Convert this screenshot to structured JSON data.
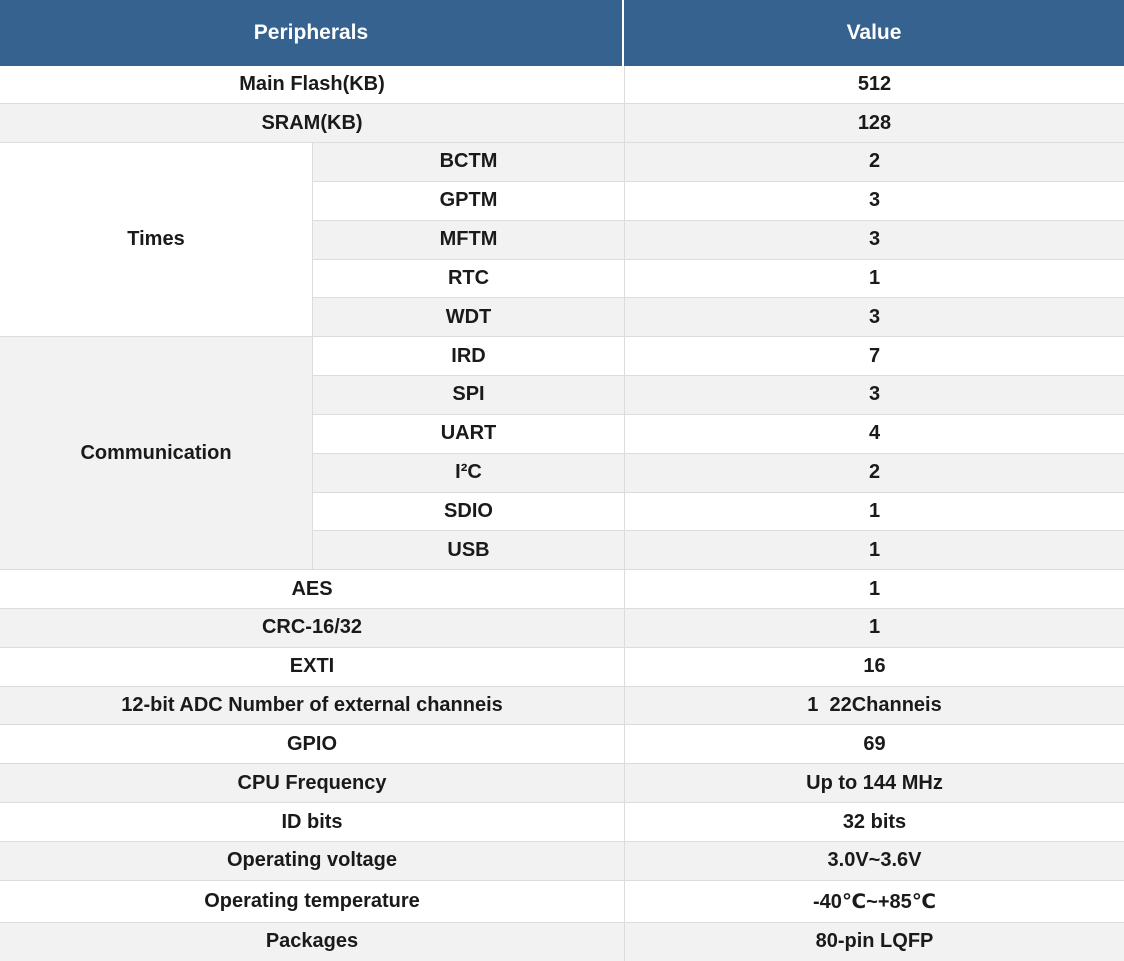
{
  "colors": {
    "header_bg": "#35628e",
    "header_text": "#ffffff",
    "row_white": "#ffffff",
    "row_shade": "#f2f2f2",
    "border": "#dcdcdc",
    "text": "#1a1a1a"
  },
  "table": {
    "columns": [
      {
        "label": "Peripherals"
      },
      {
        "label": "Value"
      }
    ],
    "rows": [
      {
        "type": "full",
        "label": "Main Flash(KB)",
        "value": "512",
        "shade": false
      },
      {
        "type": "full",
        "label": "SRAM(KB)",
        "value": "128",
        "shade": true
      },
      {
        "type": "group-start",
        "group": "Times",
        "group_span": 5,
        "group_shade": false,
        "label": "BCTM",
        "value": "2",
        "shade": true
      },
      {
        "type": "sub",
        "label": "GPTM",
        "value": "3",
        "shade": false
      },
      {
        "type": "sub",
        "label": "MFTM",
        "value": "3",
        "shade": true
      },
      {
        "type": "sub",
        "label": "RTC",
        "value": "1",
        "shade": false
      },
      {
        "type": "sub",
        "label": "WDT",
        "value": "3",
        "shade": true
      },
      {
        "type": "group-start",
        "group": "Communication",
        "group_span": 6,
        "group_shade": true,
        "label": "IRD",
        "value": "7",
        "shade": false
      },
      {
        "type": "sub",
        "label": "SPI",
        "value": "3",
        "shade": true
      },
      {
        "type": "sub",
        "label": "UART",
        "value": "4",
        "shade": false
      },
      {
        "type": "sub",
        "label": "I²C",
        "value": "2",
        "shade": true
      },
      {
        "type": "sub",
        "label": "SDIO",
        "value": "1",
        "shade": false
      },
      {
        "type": "sub",
        "label": "USB",
        "value": "1",
        "shade": true
      },
      {
        "type": "full",
        "label": "AES",
        "value": "1",
        "shade": false
      },
      {
        "type": "full",
        "label": "CRC-16/32",
        "value": "1",
        "shade": true
      },
      {
        "type": "full",
        "label": "EXTI",
        "value": "16",
        "shade": false
      },
      {
        "type": "full",
        "label": "12-bit ADC Number of external channeis",
        "value": "1  22Channeis",
        "shade": true
      },
      {
        "type": "full",
        "label": "GPIO",
        "value": "69",
        "shade": false
      },
      {
        "type": "full",
        "label": "CPU Frequency",
        "value": "Up to 144 MHz",
        "shade": true
      },
      {
        "type": "full",
        "label": "ID bits",
        "value": "32 bits",
        "shade": false
      },
      {
        "type": "full",
        "label": "Operating voltage",
        "value": "3.0V~3.6V",
        "shade": true
      },
      {
        "type": "full",
        "label": "Operating temperature",
        "value": "-40℃~+85℃",
        "shade": false
      },
      {
        "type": "full",
        "label": "Packages",
        "value": "80-pin LQFP",
        "shade": true
      }
    ]
  }
}
